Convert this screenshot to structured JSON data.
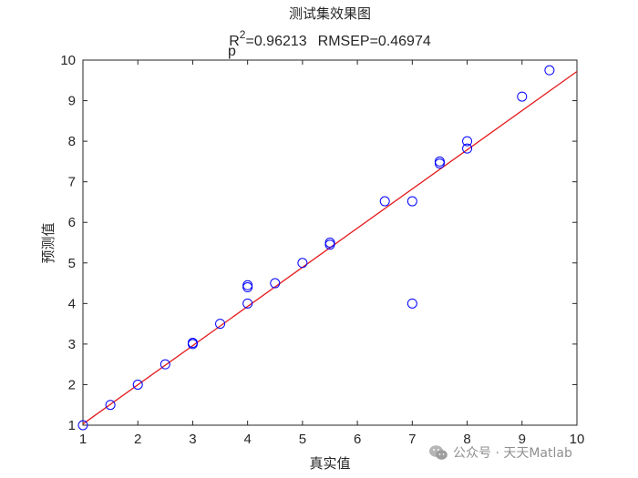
{
  "chart_data": {
    "type": "scatter",
    "title": "测试集效果图",
    "subtitle": {
      "r_symbol": "R",
      "r_subscript": "p",
      "r_superscript": "2",
      "r_value_text": "=0.96213",
      "rmsep_text": "RMSEP=0.46974"
    },
    "xlabel": "真实值",
    "ylabel": "预测值",
    "xlim": [
      1,
      10
    ],
    "ylim": [
      1,
      10
    ],
    "xticks": [
      "1",
      "2",
      "3",
      "4",
      "5",
      "6",
      "7",
      "8",
      "9",
      "10"
    ],
    "yticks": [
      "1",
      "2",
      "3",
      "4",
      "5",
      "6",
      "7",
      "8",
      "9",
      "10"
    ],
    "grid": false,
    "marker_color": "#0000ff",
    "line_color": "#e31a1c",
    "points": [
      {
        "x": 1,
        "y": 1
      },
      {
        "x": 1.5,
        "y": 1.5
      },
      {
        "x": 2,
        "y": 2
      },
      {
        "x": 2.5,
        "y": 2.5
      },
      {
        "x": 3,
        "y": 3
      },
      {
        "x": 3,
        "y": 3.03
      },
      {
        "x": 3.5,
        "y": 3.5
      },
      {
        "x": 4,
        "y": 4
      },
      {
        "x": 4,
        "y": 4.4
      },
      {
        "x": 4,
        "y": 4.45
      },
      {
        "x": 4.5,
        "y": 4.5
      },
      {
        "x": 5,
        "y": 5
      },
      {
        "x": 5.5,
        "y": 5.45
      },
      {
        "x": 5.5,
        "y": 5.5
      },
      {
        "x": 6.5,
        "y": 6.52
      },
      {
        "x": 7,
        "y": 4
      },
      {
        "x": 7,
        "y": 6.52
      },
      {
        "x": 7.5,
        "y": 7.45
      },
      {
        "x": 7.5,
        "y": 7.5
      },
      {
        "x": 8,
        "y": 7.82
      },
      {
        "x": 8,
        "y": 8
      },
      {
        "x": 9,
        "y": 9.1
      },
      {
        "x": 9.5,
        "y": 9.75
      }
    ],
    "fit_line": {
      "x": [
        1,
        10
      ],
      "y": [
        1.03,
        9.72
      ]
    }
  },
  "watermark": {
    "text": "公众号 · 天天Matlab",
    "icon": "wechat-icon"
  }
}
